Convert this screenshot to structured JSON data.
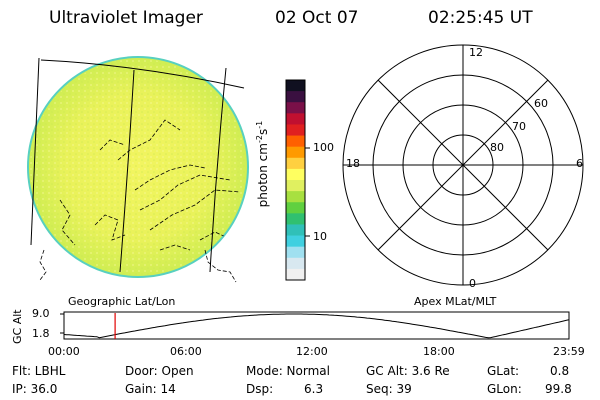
{
  "header": {
    "instrument": "Ultraviolet Imager",
    "date": "02 Oct 07",
    "time": "02:25:45 UT"
  },
  "image_panel": {
    "label": "Geographic Lat/Lon"
  },
  "colorbar": {
    "unit_label": "photon cm",
    "unit_exp1": "-2",
    "unit_mid": "s",
    "unit_exp2": "-1",
    "ticks": [
      "100",
      "10"
    ],
    "colors_top_to_bottom": [
      "#101020",
      "#3a1040",
      "#7a1048",
      "#c01030",
      "#e02020",
      "#ff6000",
      "#ff9a00",
      "#ffd040",
      "#ffff60",
      "#e0f060",
      "#a8e040",
      "#60d040",
      "#30c070",
      "#30c0b8",
      "#40d0e0",
      "#a0e0f0",
      "#d8e8f0",
      "#f0f0f0"
    ]
  },
  "polar_plot": {
    "label": "Apex MLat/MLT",
    "mlt_labels": {
      "top": "12",
      "right": "6",
      "bottom": "0",
      "left": "18"
    },
    "lat_labels": [
      "60",
      "70",
      "80"
    ]
  },
  "altitude_plot": {
    "ylabel": "GC Alt",
    "yticks": [
      "9.0",
      "1.8"
    ],
    "xticks": [
      "00:00",
      "06:00",
      "12:00",
      "18:00",
      "23:59"
    ],
    "current_time_marker_hours": 2.43,
    "curve_color": "#000000",
    "marker_color": "#e00000"
  },
  "status": {
    "filter": "Flt: LBHL",
    "door": "Door: Open",
    "mode": "Mode: Normal",
    "gc_alt": "GC Alt: 3.6 Re",
    "glat": "GLat:",
    "glat_val": "0.8",
    "ip": "IP: 36.0",
    "gain": "Gain: 14",
    "dsp": "Dsp:",
    "dsp_val": "6.3",
    "seq": "Seq: 39",
    "glon": "GLon:",
    "glon_val": "99.8"
  }
}
